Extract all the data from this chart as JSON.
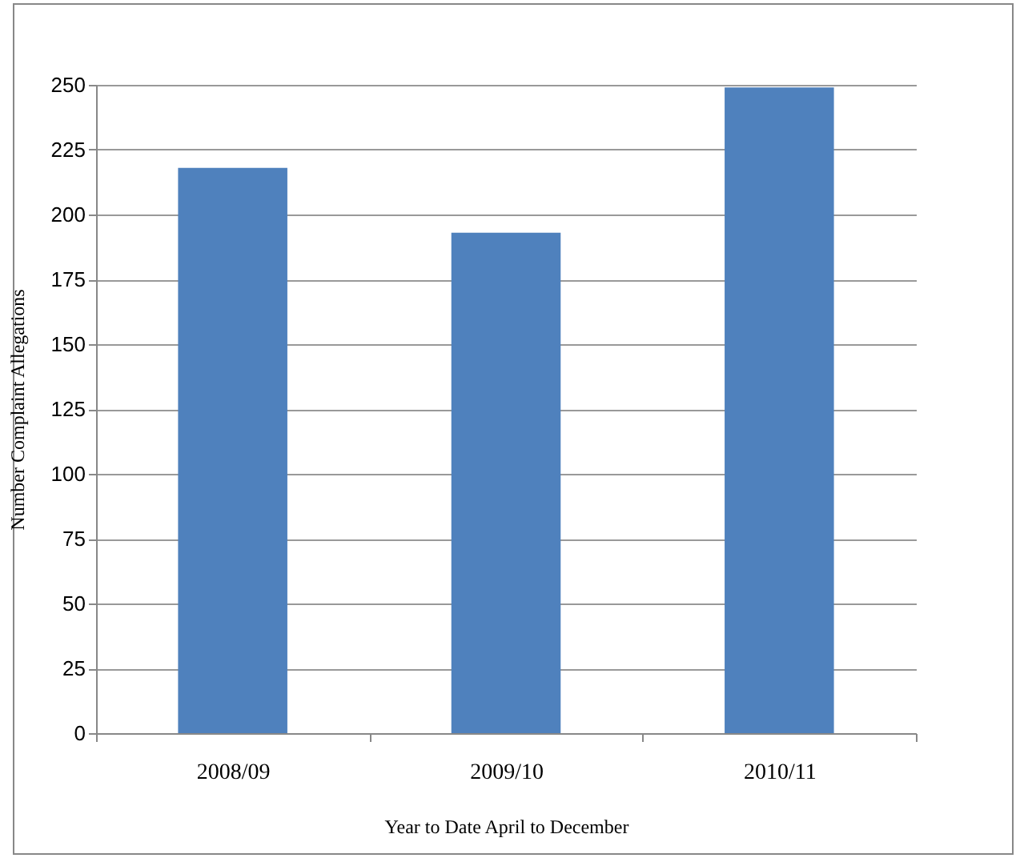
{
  "chart_data": {
    "type": "bar",
    "xlabel": "Year to Date April to  December",
    "ylabel": "Number Complaint Allegations",
    "categories": [
      "2008/09",
      "2009/10",
      "2010/11"
    ],
    "values": [
      218,
      193,
      249
    ],
    "color": "#4f81bd",
    "ylim": [
      0,
      250
    ],
    "yticks": [
      0,
      25,
      50,
      75,
      100,
      125,
      150,
      175,
      200,
      225,
      250
    ],
    "grid": "y"
  }
}
